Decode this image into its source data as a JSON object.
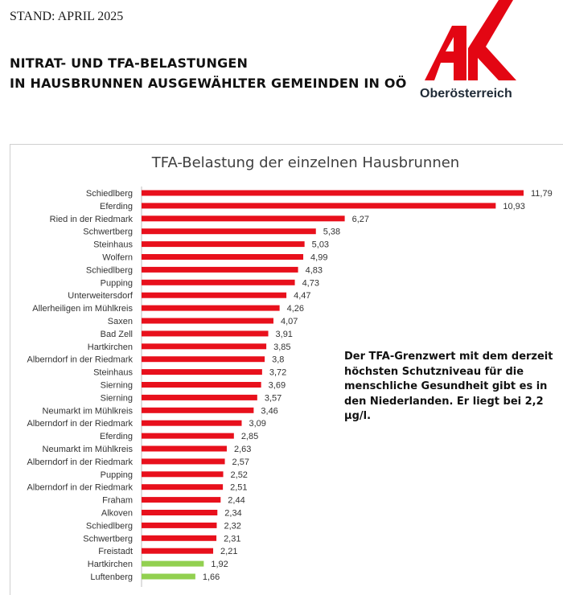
{
  "header": {
    "stand": "STAND: APRIL 2025",
    "headline_line1": "NITRAT- UND TFA-BELASTUNGEN",
    "headline_line2": "IN HAUSBRUNNEN AUSGEWÄHLTER GEMEINDEN IN OÖ"
  },
  "logo": {
    "name": "ak-logo",
    "text": "Oberösterreich",
    "color": "#e30613"
  },
  "note": "Der TFA-Grenzwert mit dem derzeit höchsten Schutzniveau für die menschliche Gesundheit gibt es in den Niederlanden. Er liegt bei 2,2 µg/l.",
  "colors": {
    "above_limit": "#e8101c",
    "below_limit": "#92d050"
  },
  "chart_data": {
    "type": "bar",
    "orientation": "horizontal",
    "title": "TFA-Belastung der einzelnen Hausbrunnen",
    "xlabel": "",
    "ylabel": "",
    "xlim": [
      0,
      12
    ],
    "grid": false,
    "limit_value": 2.2,
    "categories": [
      "Schiedlberg",
      "Eferding",
      "Ried in der Riedmark",
      "Schwertberg",
      "Steinhaus",
      "Wolfern",
      "Schiedlberg",
      "Pupping",
      "Unterweitersdorf",
      "Allerheiligen im Mühlkreis",
      "Saxen",
      "Bad Zell",
      "Hartkirchen",
      "Alberndorf in der Riedmark",
      "Steinhaus",
      "Sierning",
      "Sierning",
      "Neumarkt im Mühlkreis",
      "Alberndorf in der Riedmark",
      "Eferding",
      "Neumarkt im Mühlkreis",
      "Alberndorf in der Riedmark",
      "Pupping",
      "Alberndorf in der Riedmark",
      "Fraham",
      "Alkoven",
      "Schiedlberg",
      "Schwertberg",
      "Freistadt",
      "Hartkirchen",
      "Luftenberg"
    ],
    "values": [
      11.79,
      10.93,
      6.27,
      5.38,
      5.03,
      4.99,
      4.83,
      4.73,
      4.47,
      4.26,
      4.07,
      3.91,
      3.85,
      3.8,
      3.72,
      3.69,
      3.57,
      3.46,
      3.09,
      2.85,
      2.63,
      2.57,
      2.52,
      2.51,
      2.44,
      2.34,
      2.32,
      2.31,
      2.21,
      1.92,
      1.66
    ],
    "value_labels": [
      "11,79",
      "10,93",
      "6,27",
      "5,38",
      "5,03",
      "4,99",
      "4,83",
      "4,73",
      "4,47",
      "4,26",
      "4,07",
      "3,91",
      "3,85",
      "3,8",
      "3,72",
      "3,69",
      "3,57",
      "3,46",
      "3,09",
      "2,85",
      "2,63",
      "2,57",
      "2,52",
      "2,51",
      "2,44",
      "2,34",
      "2,32",
      "2,31",
      "2,21",
      "1,92",
      "1,66"
    ]
  }
}
